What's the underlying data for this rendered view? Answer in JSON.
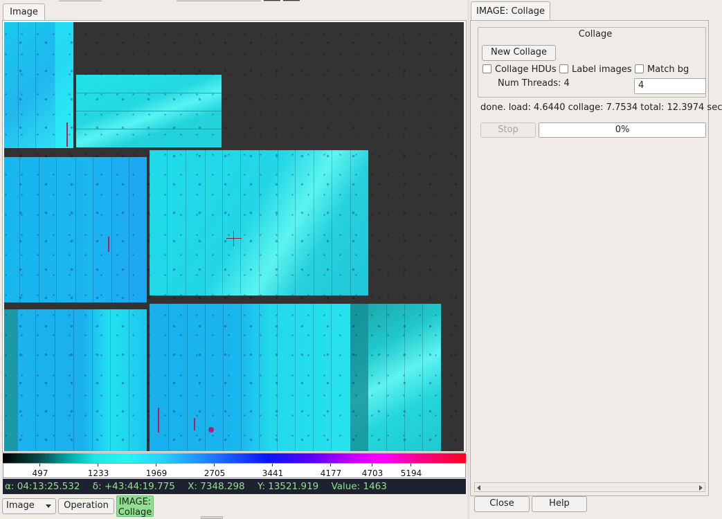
{
  "left_tabs": [
    {
      "label": "Image"
    }
  ],
  "colorbar": {
    "ticks": [
      "497",
      "1233",
      "1969",
      "2705",
      "3441",
      "4177",
      "4703",
      "5194"
    ]
  },
  "readout": {
    "ra": "α: 04:13:25.532",
    "dec": "δ: +43:44:19.775",
    "x": "X: 7348.298",
    "y": "Y: 13521.919",
    "value": "Value: 1463"
  },
  "bottom_bar": {
    "image_select": "Image",
    "operation_label": "Operation",
    "plugin_label_line1": "IMAGE:",
    "plugin_label_line2": "Collage"
  },
  "right_tabs": [
    {
      "label": "IMAGE: Collage"
    }
  ],
  "collage": {
    "group_title": "Collage",
    "new_collage_label": "New Collage",
    "collage_hdus_label": "Collage HDUs",
    "label_images_label": "Label images",
    "match_bg_label": "Match bg",
    "num_threads_label": "Num Threads: 4",
    "num_threads_value": "4",
    "status_text": "done. load: 4.6440 collage: 7.7534 total: 12.3974 sec",
    "stop_label": "Stop",
    "progress_text": "0%",
    "progress": 0
  },
  "footer": {
    "close_label": "Close",
    "help_label": "Help"
  },
  "colors": {
    "readout_bg": "#1f2130",
    "readout_text": "#8fe28f",
    "canvas_bg": "#333333",
    "plugin_active": "#8ee08e"
  }
}
